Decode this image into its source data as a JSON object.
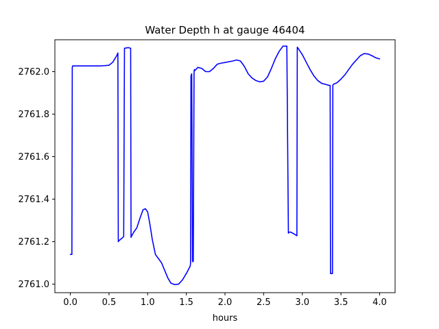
{
  "chart_data": {
    "type": "line",
    "title": "Water Depth h at gauge 46404",
    "xlabel": "hours",
    "ylabel": "",
    "xlim": [
      -0.2,
      4.2
    ],
    "ylim": [
      2760.96,
      2762.15
    ],
    "xticks": [
      0.0,
      0.5,
      1.0,
      1.5,
      2.0,
      2.5,
      3.0,
      3.5,
      4.0
    ],
    "xtick_labels": [
      "0.0",
      "0.5",
      "1.0",
      "1.5",
      "2.0",
      "2.5",
      "3.0",
      "3.5",
      "4.0"
    ],
    "yticks": [
      2761.0,
      2761.2,
      2761.4,
      2761.6,
      2761.8,
      2762.0
    ],
    "ytick_labels": [
      "2761.0",
      "2761.2",
      "2761.4",
      "2761.6",
      "2761.8",
      "2762.0"
    ],
    "grid": false,
    "series": [
      {
        "color": "#0000ff",
        "x": [
          0.0,
          0.02,
          0.025,
          0.03,
          0.2,
          0.4,
          0.5,
          0.55,
          0.6,
          0.615,
          0.62,
          0.63,
          0.68,
          0.69,
          0.7,
          0.75,
          0.78,
          0.785,
          0.79,
          0.82,
          0.86,
          0.9,
          0.94,
          0.97,
          1.0,
          1.03,
          1.06,
          1.1,
          1.14,
          1.18,
          1.22,
          1.26,
          1.3,
          1.35,
          1.4,
          1.45,
          1.5,
          1.55,
          1.555,
          1.56,
          1.565,
          1.57,
          1.58,
          1.585,
          1.59,
          1.6,
          1.605,
          1.61,
          1.65,
          1.7,
          1.75,
          1.8,
          1.85,
          1.9,
          1.95,
          2.0,
          2.1,
          2.15,
          2.2,
          2.25,
          2.3,
          2.35,
          2.4,
          2.45,
          2.5,
          2.55,
          2.6,
          2.65,
          2.7,
          2.75,
          2.8,
          2.82,
          2.825,
          2.83,
          2.85,
          2.9,
          2.93,
          2.935,
          2.94,
          3.0,
          3.05,
          3.1,
          3.15,
          3.2,
          3.25,
          3.3,
          3.35,
          3.36,
          3.365,
          3.37,
          3.39,
          3.395,
          3.4,
          3.45,
          3.5,
          3.55,
          3.6,
          3.65,
          3.7,
          3.75,
          3.8,
          3.85,
          3.9,
          3.95,
          4.0
        ],
        "y": [
          2761.14,
          2761.14,
          2762.02,
          2762.027,
          2762.027,
          2762.027,
          2762.03,
          2762.045,
          2762.075,
          2762.088,
          2761.2,
          2761.205,
          2761.22,
          2761.225,
          2762.11,
          2762.113,
          2762.11,
          2761.22,
          2761.225,
          2761.245,
          2761.265,
          2761.31,
          2761.35,
          2761.355,
          2761.34,
          2761.28,
          2761.21,
          2761.14,
          2761.12,
          2761.1,
          2761.065,
          2761.03,
          2761.005,
          2760.998,
          2761.0,
          2761.02,
          2761.05,
          2761.085,
          2761.1,
          2761.98,
          2761.985,
          2761.99,
          2761.11,
          2761.105,
          2761.11,
          2762.0,
          2762.01,
          2762.005,
          2762.02,
          2762.015,
          2762.0,
          2762.0,
          2762.015,
          2762.035,
          2762.04,
          2762.043,
          2762.05,
          2762.055,
          2762.05,
          2762.025,
          2761.99,
          2761.97,
          2761.958,
          2761.952,
          2761.955,
          2761.975,
          2762.015,
          2762.06,
          2762.095,
          2762.12,
          2762.12,
          2761.24,
          2761.242,
          2761.245,
          2761.245,
          2761.235,
          2761.228,
          2762.115,
          2762.113,
          2762.08,
          2762.045,
          2762.01,
          2761.98,
          2761.958,
          2761.945,
          2761.94,
          2761.935,
          2761.935,
          2761.05,
          2761.05,
          2761.05,
          2761.935,
          2761.94,
          2761.948,
          2761.965,
          2761.985,
          2762.01,
          2762.035,
          2762.055,
          2762.075,
          2762.085,
          2762.083,
          2762.075,
          2762.065,
          2762.06
        ]
      }
    ]
  }
}
